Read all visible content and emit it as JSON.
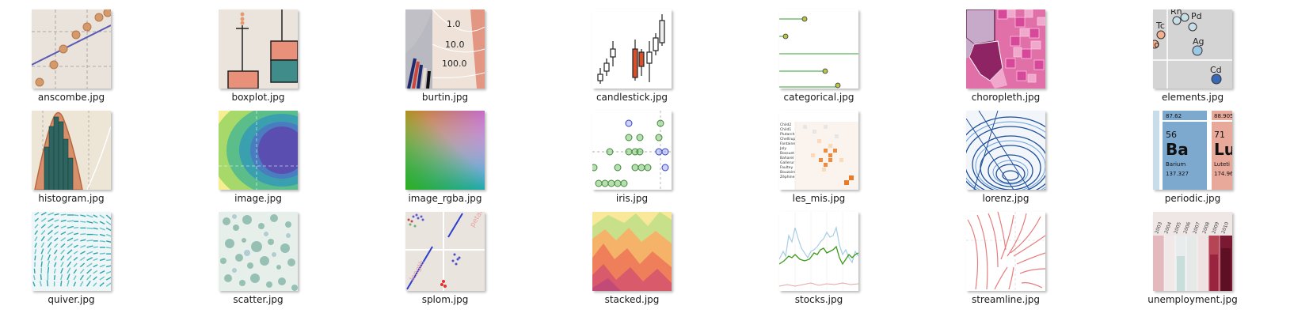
{
  "files": [
    {
      "name": "anscombe.jpg",
      "icon": "scatter-regression-thumbnail"
    },
    {
      "name": "boxplot.jpg",
      "icon": "boxplot-thumbnail"
    },
    {
      "name": "burtin.jpg",
      "icon": "radial-chart-thumbnail"
    },
    {
      "name": "candlestick.jpg",
      "icon": "candlestick-thumbnail"
    },
    {
      "name": "categorical.jpg",
      "icon": "lollipop-chart-thumbnail"
    },
    {
      "name": "choropleth.jpg",
      "icon": "choropleth-map-thumbnail"
    },
    {
      "name": "elements.jpg",
      "icon": "element-bubbles-thumbnail"
    },
    {
      "name": "histogram.jpg",
      "icon": "histogram-thumbnail"
    },
    {
      "name": "image.jpg",
      "icon": "contour-image-thumbnail"
    },
    {
      "name": "image_rgba.jpg",
      "icon": "rgba-gradient-thumbnail"
    },
    {
      "name": "iris.jpg",
      "icon": "iris-scatter-thumbnail"
    },
    {
      "name": "les_mis.jpg",
      "icon": "matrix-heatmap-thumbnail"
    },
    {
      "name": "lorenz.jpg",
      "icon": "lorenz-attractor-thumbnail"
    },
    {
      "name": "periodic.jpg",
      "icon": "periodic-table-thumbnail"
    },
    {
      "name": "quiver.jpg",
      "icon": "quiver-plot-thumbnail"
    },
    {
      "name": "scatter.jpg",
      "icon": "scatter-circles-thumbnail"
    },
    {
      "name": "splom.jpg",
      "icon": "scatter-matrix-thumbnail"
    },
    {
      "name": "stacked.jpg",
      "icon": "stacked-area-thumbnail"
    },
    {
      "name": "stocks.jpg",
      "icon": "stock-lines-thumbnail"
    },
    {
      "name": "streamline.jpg",
      "icon": "streamline-thumbnail"
    },
    {
      "name": "unemployment.jpg",
      "icon": "unemployment-heatmap-thumbnail"
    }
  ],
  "thumb_text": {
    "burtin_ticks": [
      "1.0",
      "10.0",
      "100.0"
    ],
    "elements": [
      "Tc",
      "Pd",
      "Rh",
      "Ag",
      "Cd",
      "Io"
    ],
    "periodic_a": {
      "mass": "87.62",
      "number": "56",
      "symbol": "Ba",
      "name": "Barium",
      "weight": "137.327"
    },
    "periodic_b": {
      "mass": "88.905",
      "number": "71",
      "symbol": "Lu",
      "name": "Luteti",
      "weight": "174.96"
    },
    "les_mis_names": [
      "Child2",
      "Child1",
      "Plutarch",
      "Cheltrup",
      "Fantaine",
      "Joly",
      "Bossuet",
      "Baharel",
      "Gallerur",
      "Faultey",
      "Bouzaire",
      "Zéphine"
    ],
    "unemployment_years": [
      "2003",
      "2004",
      "2005",
      "2006",
      "2007",
      "2008",
      "2009",
      "2010"
    ],
    "splom_axis": "length",
    "splom_axis2": "petal"
  }
}
